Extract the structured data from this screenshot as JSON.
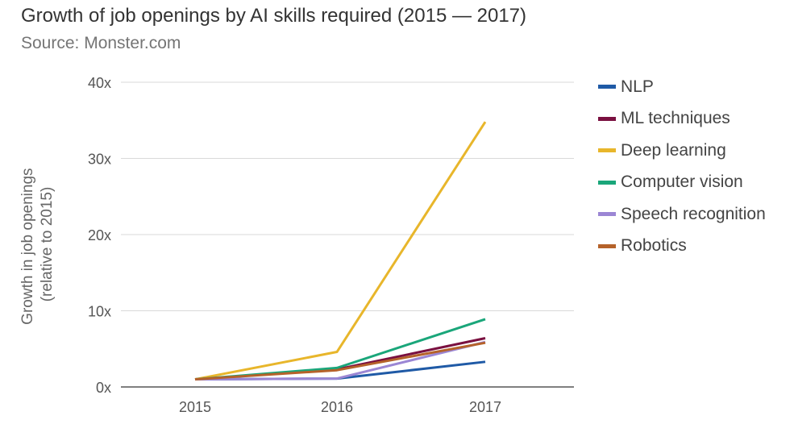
{
  "title": "Growth of job openings by AI skills required (2015 — 2017)",
  "subtitle": "Source: Monster.com",
  "chart_data": {
    "type": "line",
    "x": [
      "2015",
      "2016",
      "2017"
    ],
    "ylabel_line1": "Growth in job openings",
    "ylabel_line2": "(relative to 2015)",
    "ylim": [
      0,
      40
    ],
    "yticks": [
      {
        "value": 0,
        "label": "0x"
      },
      {
        "value": 10,
        "label": "10x"
      },
      {
        "value": 20,
        "label": "20x"
      },
      {
        "value": 30,
        "label": "30x"
      },
      {
        "value": 40,
        "label": "40x"
      }
    ],
    "grid": true,
    "legend_position": "right",
    "series": [
      {
        "name": "NLP",
        "color": "#1f5aa6",
        "values": [
          1,
          1.1,
          3.3
        ]
      },
      {
        "name": "ML techniques",
        "color": "#7a1040",
        "values": [
          1,
          2.3,
          6.4
        ]
      },
      {
        "name": "Deep learning",
        "color": "#e8b62b",
        "values": [
          1,
          4.6,
          34.8
        ]
      },
      {
        "name": "Computer vision",
        "color": "#1aa67a",
        "values": [
          1,
          2.5,
          8.9
        ]
      },
      {
        "name": "Speech recognition",
        "color": "#9b86d4",
        "values": [
          1,
          1.1,
          5.9
        ]
      },
      {
        "name": "Robotics",
        "color": "#b5622a",
        "values": [
          1,
          2.2,
          5.8
        ]
      }
    ]
  }
}
